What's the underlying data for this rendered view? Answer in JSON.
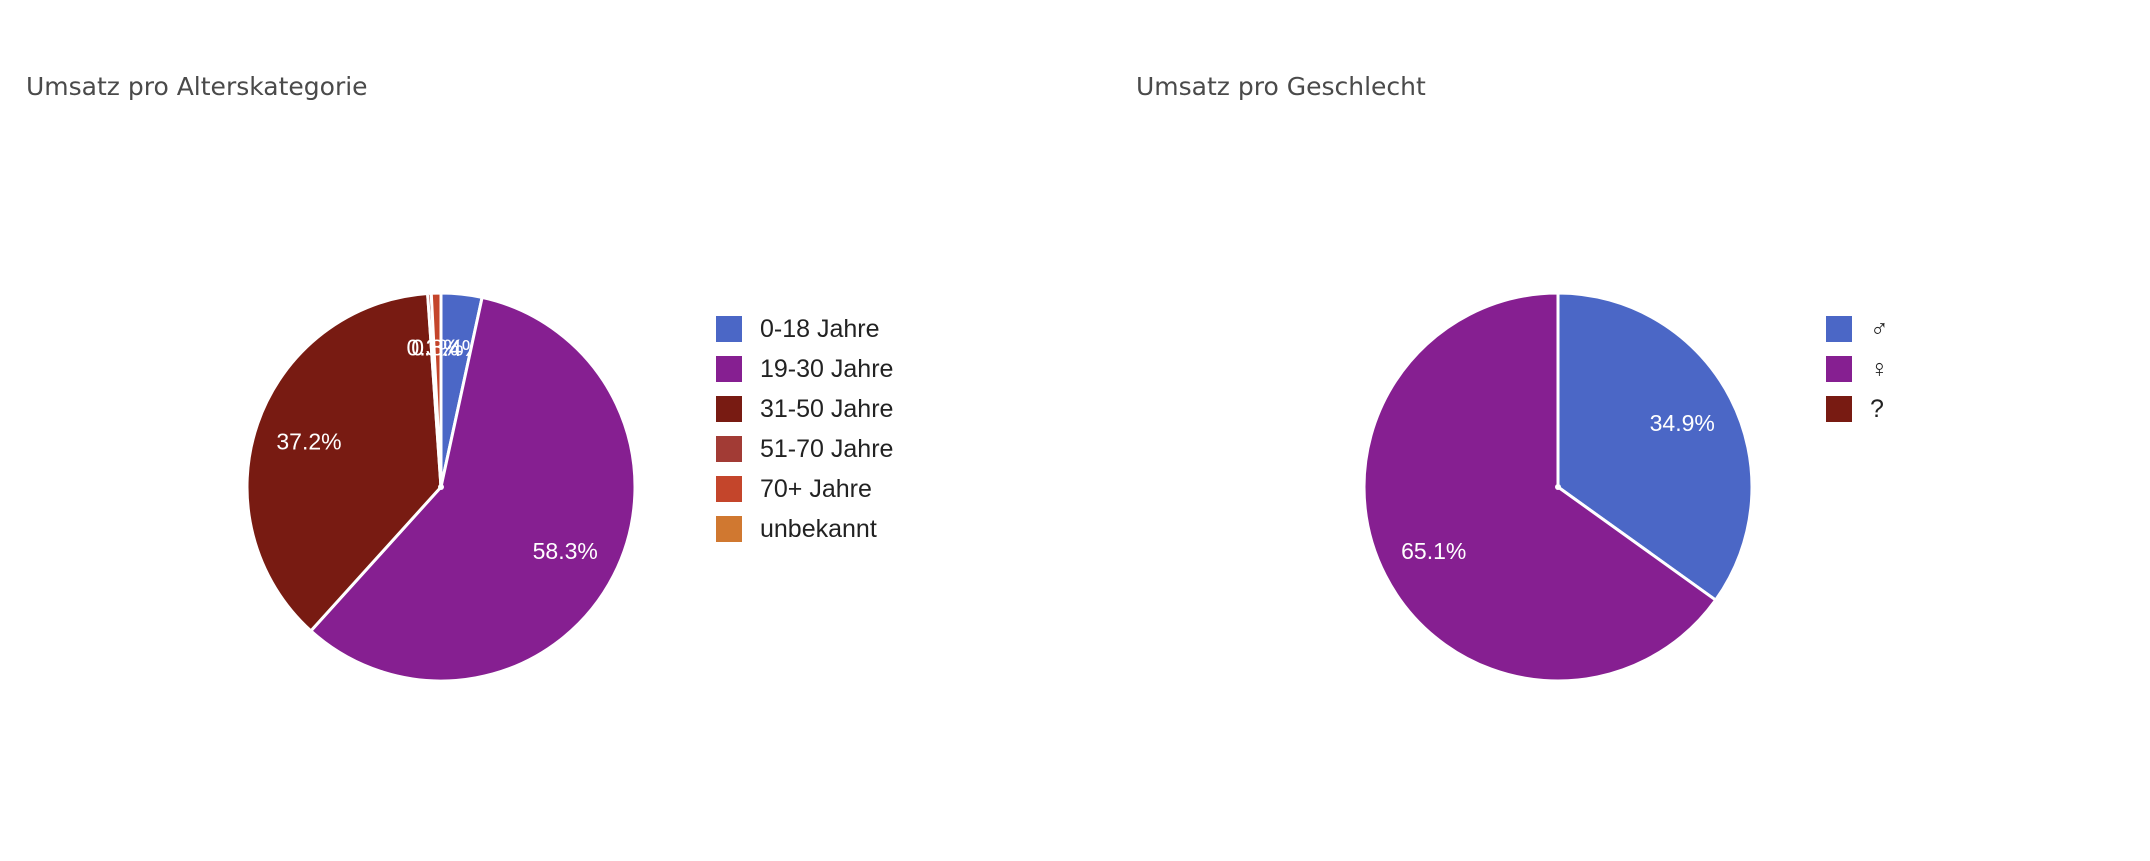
{
  "chart_data": [
    {
      "type": "pie",
      "title": "Umsatz pro Alterskategorie",
      "slices": [
        {
          "label": "0-18 Jahre",
          "value": 3.4,
          "display": "3.4%",
          "color": "#4b67c6"
        },
        {
          "label": "19-30 Jahre",
          "value": 58.3,
          "display": "58.3%",
          "color": "#861f91"
        },
        {
          "label": "31-50 Jahre",
          "value": 37.2,
          "display": "37.2%",
          "color": "#781b12"
        },
        {
          "label": "51-70 Jahre",
          "value": 0.3,
          "display": "0.3%",
          "color": "#a23b35"
        },
        {
          "label": "70+ Jahre",
          "value": 0.8,
          "display": "0.8%",
          "color": "#c4452b"
        },
        {
          "label": "unbekannt",
          "value": 0.0,
          "display": "",
          "color": "#d07830"
        }
      ],
      "legend_position": "right"
    },
    {
      "type": "pie",
      "title": "Umsatz pro Geschlecht",
      "slices": [
        {
          "label": "♂",
          "value": 34.9,
          "display": "34.9%",
          "color": "#4b67c6"
        },
        {
          "label": "♀",
          "value": 65.1,
          "display": "65.1%",
          "color": "#861f91"
        },
        {
          "label": "?",
          "value": 0.0,
          "display": "",
          "color": "#781b12"
        }
      ],
      "legend_position": "right"
    }
  ]
}
